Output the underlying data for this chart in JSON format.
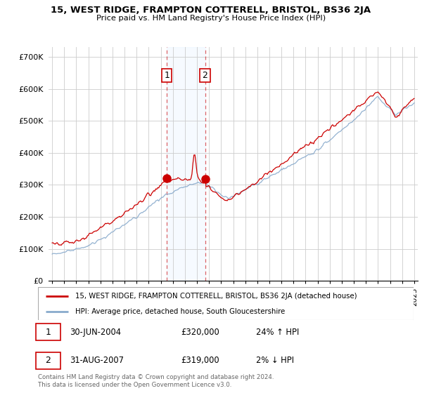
{
  "title1": "15, WEST RIDGE, FRAMPTON COTTERELL, BRISTOL, BS36 2JA",
  "title2": "Price paid vs. HM Land Registry's House Price Index (HPI)",
  "ylabel_ticks": [
    "£0",
    "£100K",
    "£200K",
    "£300K",
    "£400K",
    "£500K",
    "£600K",
    "£700K"
  ],
  "ytick_vals": [
    0,
    100000,
    200000,
    300000,
    400000,
    500000,
    600000,
    700000
  ],
  "ylim": [
    0,
    730000
  ],
  "xlim_start": 1994.7,
  "xlim_end": 2025.3,
  "sale1_x": 2004.5,
  "sale1_y": 320000,
  "sale2_x": 2007.67,
  "sale2_y": 319000,
  "red_line_color": "#cc0000",
  "blue_line_color": "#88aacc",
  "shade_color": "#ddeeff",
  "grid_color": "#cccccc",
  "legend1": "15, WEST RIDGE, FRAMPTON COTTERELL, BRISTOL, BS36 2JA (detached house)",
  "legend2": "HPI: Average price, detached house, South Gloucestershire",
  "annotation1_date": "30-JUN-2004",
  "annotation1_price": "£320,000",
  "annotation1_hpi": "24% ↑ HPI",
  "annotation2_date": "31-AUG-2007",
  "annotation2_price": "£319,000",
  "annotation2_hpi": "2% ↓ HPI",
  "footer": "Contains HM Land Registry data © Crown copyright and database right 2024.\nThis data is licensed under the Open Government Licence v3.0.",
  "background_color": "#ffffff"
}
